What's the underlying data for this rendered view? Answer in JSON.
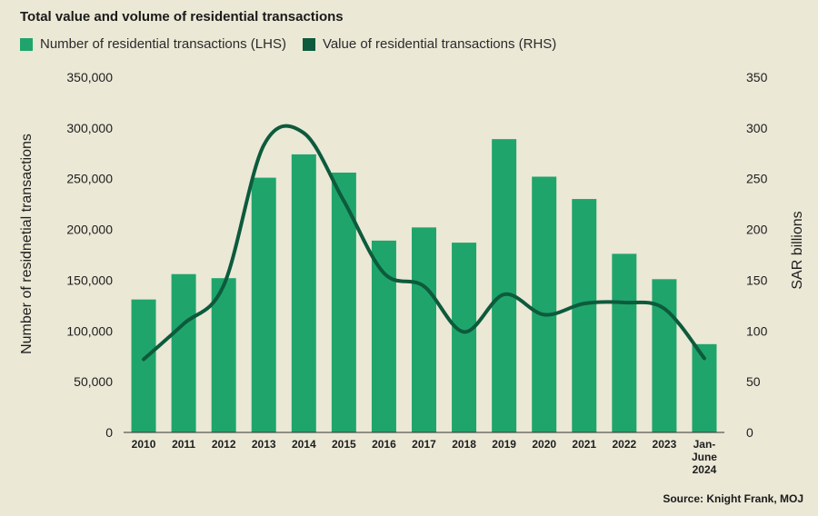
{
  "title": "Total value and volume of residential transactions",
  "source": "Source: Knight Frank, MOJ",
  "colors": {
    "bar": "#1fa56b",
    "line": "#0d5a3c",
    "background": "#ebe8d6",
    "axis": "#333333",
    "text": "#1e1e1e"
  },
  "chart_data": {
    "type": "bar",
    "title": "Total value and volume of residential transactions",
    "categories": [
      "2010",
      "2011",
      "2012",
      "2013",
      "2014",
      "2015",
      "2016",
      "2017",
      "2018",
      "2019",
      "2020",
      "2021",
      "2022",
      "2023",
      "Jan-June 2024"
    ],
    "category_labels": [
      [
        "2010"
      ],
      [
        "2011"
      ],
      [
        "2012"
      ],
      [
        "2013"
      ],
      [
        "2014"
      ],
      [
        "2015"
      ],
      [
        "2016"
      ],
      [
        "2017"
      ],
      [
        "2018"
      ],
      [
        "2019"
      ],
      [
        "2020"
      ],
      [
        "2021"
      ],
      [
        "2022"
      ],
      [
        "2023"
      ],
      [
        "Jan-",
        "June",
        "2024"
      ]
    ],
    "series": [
      {
        "name": "Number of residential transactions (LHS)",
        "type": "bar",
        "axis": "left",
        "values": [
          131000,
          156000,
          152000,
          251000,
          274000,
          256000,
          189000,
          202000,
          187000,
          289000,
          252000,
          230000,
          176000,
          151000,
          87000
        ]
      },
      {
        "name": "Value of residential transactions (RHS)",
        "type": "line",
        "axis": "right",
        "values": [
          72,
          107,
          145,
          283,
          295,
          228,
          157,
          144,
          99,
          136,
          116,
          127,
          128,
          122,
          73
        ]
      }
    ],
    "y_left": {
      "label": "Number of residnetial transactions",
      "ylim": [
        0,
        350000
      ],
      "ticks": [
        0,
        50000,
        100000,
        150000,
        200000,
        250000,
        300000,
        350000
      ],
      "tick_labels": [
        "0",
        "50,000",
        "100,000",
        "150,000",
        "200,000",
        "250,000",
        "300,000",
        "350,000"
      ]
    },
    "y_right": {
      "label": "SAR billions",
      "ylim": [
        0,
        350
      ],
      "ticks": [
        0,
        50,
        100,
        150,
        200,
        250,
        300,
        350
      ],
      "tick_labels": [
        "0",
        "50",
        "100",
        "150",
        "200",
        "250",
        "300",
        "350"
      ]
    },
    "grid": false,
    "legend_position": "top-left"
  }
}
